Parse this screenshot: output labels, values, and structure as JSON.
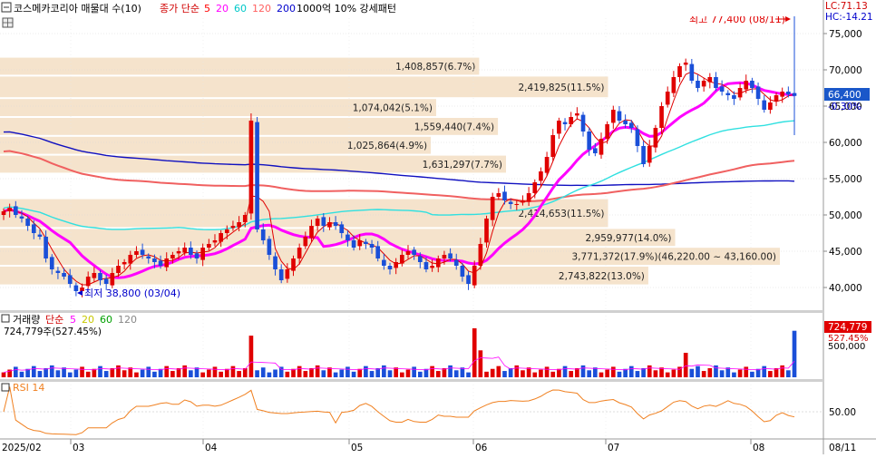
{
  "header": {
    "title": "코스메카코리아 매물대 수(10)",
    "ma_prefix": "종가 단순",
    "ma_periods": [
      "5",
      "20",
      "60",
      "120",
      "200"
    ],
    "ma_colors": [
      "#ff0000",
      "#ff00ff",
      "#00c8c8",
      "#ff6060",
      "#0000cc"
    ],
    "extra": "1000억 10% 강세패턴"
  },
  "corner": {
    "lc": "LC:71.13",
    "hc": "HC:-14.21"
  },
  "price_axis": {
    "ticks": [
      "75,000",
      "70,000",
      "65,000",
      "60,000",
      "55,000",
      "50,000",
      "45,000",
      "40,000"
    ],
    "current_price": "66,400",
    "current_change": "-0.30%"
  },
  "volume_profile": [
    {
      "label": "1,408,857(6.7%)",
      "price_low": 69200,
      "price_high": 71800
    },
    {
      "label": "2,419,825(11.5%)",
      "price_low": 66100,
      "price_high": 69200
    },
    {
      "label": "1,074,042(5.1%)",
      "price_low": 63500,
      "price_high": 66100
    },
    {
      "label": "1,559,440(7.4%)",
      "price_low": 60900,
      "price_high": 63500
    },
    {
      "label": "1,025,864(4.9%)",
      "price_low": 58300,
      "price_high": 60900
    },
    {
      "label": "1,631,297(7.7%)",
      "price_low": 55700,
      "price_high": 58300
    },
    {
      "label": "2,414,653(11.5%)",
      "price_low": 48200,
      "price_high": 52300
    },
    {
      "label": "2,959,977(14.0%)",
      "price_low": 45600,
      "price_high": 48200
    },
    {
      "label": "3,771,372(17.9%)(46,220.00 ~ 43,160.00)",
      "price_low": 43000,
      "price_high": 45600
    },
    {
      "label": "2,743,822(13.0%)",
      "price_low": 40300,
      "price_high": 43000
    }
  ],
  "annotations": {
    "high": "최고 77,400 (08/11)",
    "low": "최저 38,800 (03/04)"
  },
  "volume_panel": {
    "title": "거래량",
    "ma_prefix": "단순",
    "ma_periods": [
      "5",
      "20",
      "60",
      "120"
    ],
    "ma_colors": [
      "#ff00ff",
      "#c8c800",
      "#00a000",
      "#888888"
    ],
    "info": "724,779주(527.45%)",
    "badge_value": "724,779",
    "badge_pct": "527.45%",
    "axis_label": "500,000"
  },
  "rsi_panel": {
    "title": "RSI 14",
    "axis_label": "50.00"
  },
  "x_axis": {
    "start_label": "2025/02",
    "month_labels": [
      "03",
      "04",
      "05",
      "06",
      "07",
      "08"
    ],
    "end_label": "08/11"
  },
  "chart_data": {
    "type": "candlestick",
    "title": "코스메카코리아",
    "x_range": [
      "2025/02",
      "08/11"
    ],
    "ylim": [
      37500,
      78500
    ],
    "price_ticks": [
      75000,
      70000,
      65000,
      60000,
      55000,
      50000,
      45000,
      40000
    ],
    "high": {
      "value": 77400,
      "date": "08/11"
    },
    "low": {
      "value": 38800,
      "date": "03/04"
    },
    "last_close": 66400,
    "ma_endpoints": {
      "ma60": 59500,
      "ma120": 52200,
      "ma200": 54500
    },
    "volume_last": 724779,
    "volume_last_ratio_pct": 527.45,
    "candle_closes": [
      50500,
      51000,
      50000,
      49500,
      48500,
      47500,
      47000,
      44000,
      42500,
      42000,
      41500,
      40500,
      39500,
      40000,
      41500,
      42000,
      41000,
      40500,
      42000,
      43000,
      43500,
      44500,
      45000,
      44500,
      44000,
      43500,
      43000,
      44000,
      44500,
      45000,
      45500,
      44500,
      44000,
      45500,
      46000,
      46500,
      47500,
      48000,
      48500,
      49000,
      50000,
      63000,
      48000,
      46500,
      44500,
      42500,
      41000,
      42500,
      44000,
      45500,
      47000,
      48500,
      49500,
      48500,
      49000,
      48500,
      47500,
      46500,
      45500,
      46500,
      46000,
      45500,
      44000,
      43000,
      42500,
      43500,
      44500,
      45000,
      44500,
      43500,
      42500,
      43000,
      44000,
      44500,
      44000,
      43000,
      41500,
      40500,
      43000,
      46000,
      49500,
      52500,
      53000,
      52000,
      51500,
      51500,
      52000,
      53000,
      54500,
      56000,
      58000,
      61000,
      63000,
      62500,
      63500,
      64000,
      61500,
      59000,
      58500,
      60500,
      62500,
      64500,
      63000,
      62500,
      62000,
      59500,
      57000,
      59500,
      62000,
      65000,
      67000,
      69000,
      70500,
      71000,
      68500,
      67500,
      68500,
      69000,
      67500,
      67000,
      66500,
      66000,
      67500,
      68500,
      67500,
      66000,
      64500,
      65500,
      66500,
      67000,
      66600,
      66400
    ],
    "volume_days_with_spikes": [
      {
        "index": 41,
        "relative": 0.85
      },
      {
        "index": 78,
        "relative": 1.0
      },
      {
        "index": 79,
        "relative": 0.55
      },
      {
        "index": 113,
        "relative": 0.5
      },
      {
        "index": 131,
        "relative": 0.95
      }
    ],
    "rsi_level": 50
  }
}
